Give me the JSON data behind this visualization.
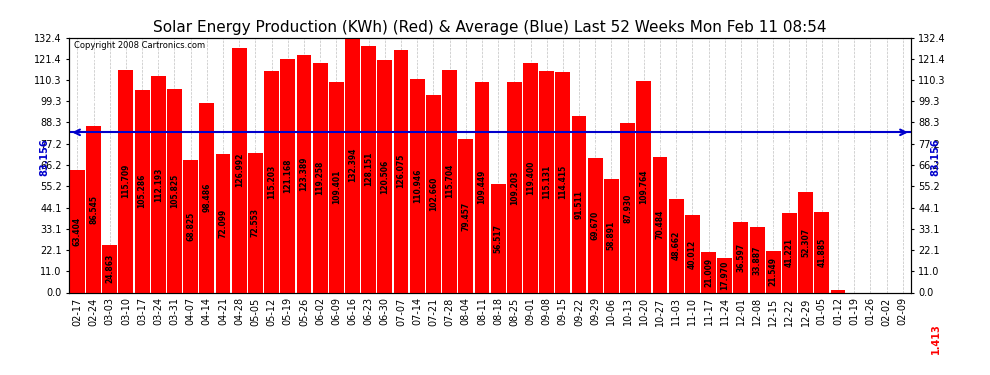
{
  "title": "Solar Energy Production (KWh) (Red) & Average (Blue) Last 52 Weeks Mon Feb 11 08:54",
  "copyright": "Copyright 2008 Cartronics.com",
  "average_value": 83.156,
  "ylim": [
    0,
    132.4
  ],
  "yticks": [
    0.0,
    11.0,
    22.1,
    33.1,
    44.1,
    55.2,
    66.2,
    77.2,
    88.3,
    99.3,
    110.3,
    121.4,
    132.4
  ],
  "bar_color": "#ff0000",
  "avg_line_color": "#0000cc",
  "background_color": "#ffffff",
  "grid_color": "#c0c0c0",
  "categories": [
    "02-17",
    "02-24",
    "03-03",
    "03-10",
    "03-17",
    "03-24",
    "03-31",
    "04-07",
    "04-14",
    "04-21",
    "04-28",
    "05-05",
    "05-12",
    "05-19",
    "05-26",
    "06-02",
    "06-09",
    "06-16",
    "06-23",
    "06-30",
    "07-07",
    "07-14",
    "07-21",
    "07-28",
    "08-04",
    "08-11",
    "08-18",
    "08-25",
    "09-01",
    "09-08",
    "09-15",
    "09-22",
    "09-29",
    "10-06",
    "10-13",
    "10-20",
    "10-27",
    "11-03",
    "11-10",
    "11-17",
    "11-24",
    "12-01",
    "12-08",
    "12-15",
    "12-22",
    "12-29",
    "01-05",
    "01-12",
    "01-19",
    "01-26",
    "02-02",
    "02-09"
  ],
  "values": [
    63.404,
    86.545,
    24.863,
    115.709,
    105.286,
    112.193,
    105.825,
    68.825,
    98.486,
    72.099,
    126.992,
    72.553,
    115.203,
    121.168,
    123.389,
    119.258,
    109.401,
    132.394,
    128.151,
    120.506,
    126.075,
    110.946,
    102.66,
    115.704,
    79.457,
    109.449,
    56.517,
    109.203,
    119.4,
    115.131,
    114.415,
    91.511,
    69.67,
    58.891,
    87.93,
    109.764,
    70.484,
    48.662,
    40.012,
    21.009,
    17.97,
    36.597,
    33.887,
    21.549,
    41.221,
    52.307,
    41.885,
    1.413,
    0.0,
    0.0,
    0.0,
    0.0
  ],
  "title_fontsize": 11,
  "tick_fontsize": 7,
  "value_fontsize": 5.5
}
